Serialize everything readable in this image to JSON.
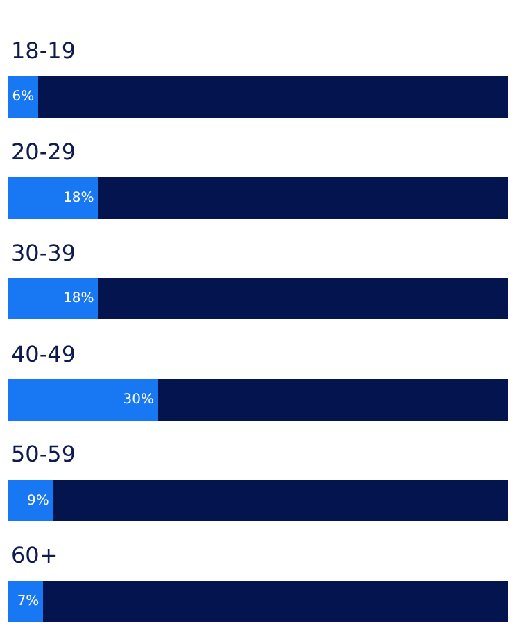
{
  "chart_data": {
    "type": "bar",
    "orientation": "horizontal",
    "stacked": true,
    "tick_labels": false,
    "xlim": [
      0,
      100
    ],
    "categories": [
      "18-19",
      "20-29",
      "30-39",
      "40-49",
      "50-59",
      "60+"
    ],
    "series": [
      {
        "color": "#1877f2",
        "values": [
          6,
          18,
          18,
          30,
          9,
          7
        ],
        "value_labels": [
          "6%",
          "18%",
          "18%",
          "30%",
          "9%",
          "7%"
        ]
      },
      {
        "color": "#04144f",
        "values": [
          94,
          82,
          82,
          70,
          91,
          93
        ]
      }
    ]
  }
}
